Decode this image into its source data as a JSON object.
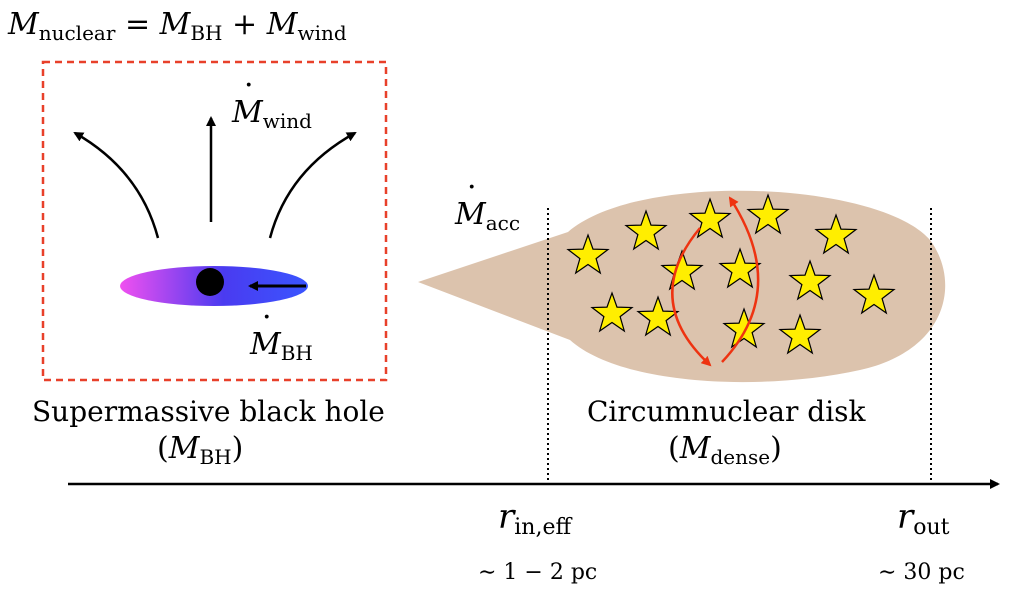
{
  "header_equation": {
    "lhs_symbol": "M",
    "lhs_sub": "nuclear",
    "eq": "=",
    "term1_symbol": "M",
    "term1_sub": "BH",
    "plus": "+",
    "term2_symbol": "M",
    "term2_sub": "wind"
  },
  "labels": {
    "wind_symbol": "M",
    "wind_sub": "wind",
    "bh_symbol": "M",
    "bh_sub": "BH",
    "acc_symbol": "M",
    "acc_sub": "acc"
  },
  "captions": {
    "smbh_title": "Supermassive black hole",
    "smbh_mass_symbol": "M",
    "smbh_mass_sub": "BH",
    "disk_title": "Circumnuclear disk",
    "disk_mass_symbol": "M",
    "disk_mass_sub": "dense"
  },
  "axis": {
    "rin_symbol": "r",
    "rin_sub": "in,eff",
    "rin_value": "∼ 1 − 2 pc",
    "rout_symbol": "r",
    "rout_sub": "out",
    "rout_value": "∼ 30 pc"
  },
  "colors": {
    "box_border": "#e8402a",
    "disk_fill": "#dcc3ad",
    "star_fill": "#ffee00",
    "circulation_arrow": "#ee3311",
    "accretion_disk_left": "#ee44ee",
    "accretion_disk_right": "#3344ff"
  }
}
